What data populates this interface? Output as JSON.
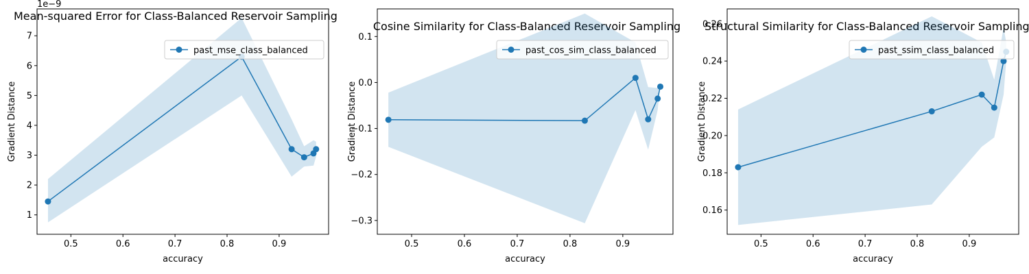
{
  "chart_data": [
    {
      "type": "line",
      "title": "Mean-squared Error for Class-Balanced Reservoir Sampling",
      "xlabel": "accuracy",
      "ylabel": "Gradient Distance",
      "y_multiplier_label": "1e−9",
      "xlim": [
        0.435,
        0.995
      ],
      "ylim": [
        0.35,
        7.9
      ],
      "xticks": [
        0.5,
        0.6,
        0.7,
        0.8,
        0.9
      ],
      "yticks": [
        1,
        2,
        3,
        4,
        5,
        6,
        7
      ],
      "xtick_labels": [
        "0.5",
        "0.6",
        "0.7",
        "0.8",
        "0.9"
      ],
      "ytick_labels": [
        "1",
        "2",
        "3",
        "4",
        "5",
        "6",
        "7"
      ],
      "legend_position": "top-right",
      "series": [
        {
          "name": "past_mse_class_balanced",
          "color": "#1f77b4",
          "x": [
            0.456,
            0.828,
            0.924,
            0.948,
            0.966,
            0.971
          ],
          "y": [
            1.45,
            6.3,
            3.2,
            2.93,
            3.06,
            3.2
          ],
          "band_upper": [
            2.2,
            7.6,
            4.2,
            3.3,
            3.5,
            3.45
          ],
          "band_lower": [
            0.75,
            5.0,
            2.28,
            2.62,
            2.65,
            2.95
          ]
        }
      ]
    },
    {
      "type": "line",
      "title": "Cosine Similarity for Class-Balanced Reservoir Sampling",
      "xlabel": "accuracy",
      "ylabel": "Gradient Distance",
      "xlim": [
        0.435,
        0.995
      ],
      "ylim": [
        -0.33,
        0.16
      ],
      "xticks": [
        0.5,
        0.6,
        0.7,
        0.8,
        0.9
      ],
      "yticks": [
        -0.3,
        -0.2,
        -0.1,
        0.0,
        0.1
      ],
      "xtick_labels": [
        "0.5",
        "0.6",
        "0.7",
        "0.8",
        "0.9"
      ],
      "ytick_labels": [
        "−0.3",
        "−0.2",
        "−0.1",
        "0.0",
        "0.1"
      ],
      "legend_position": "top-right",
      "series": [
        {
          "name": "past_cos_sim_class_balanced",
          "color": "#1f77b4",
          "x": [
            0.456,
            0.828,
            0.924,
            0.948,
            0.966,
            0.971
          ],
          "y": [
            -0.081,
            -0.083,
            0.01,
            -0.08,
            -0.035,
            -0.009
          ],
          "band_upper": [
            -0.022,
            0.15,
            0.087,
            -0.01,
            -0.012,
            -0.012
          ],
          "band_lower": [
            -0.14,
            -0.306,
            -0.06,
            -0.146,
            -0.06,
            -0.005
          ]
        }
      ]
    },
    {
      "type": "line",
      "title": "Structural Similarity for Class-Balanced Reservoir Sampling",
      "xlabel": "accuracy",
      "ylabel": "Gradient Distance",
      "xlim": [
        0.435,
        0.995
      ],
      "ylim": [
        0.147,
        0.268
      ],
      "xticks": [
        0.5,
        0.6,
        0.7,
        0.8,
        0.9
      ],
      "yticks": [
        0.16,
        0.18,
        0.2,
        0.22,
        0.24,
        0.26
      ],
      "xtick_labels": [
        "0.5",
        "0.6",
        "0.7",
        "0.8",
        "0.9"
      ],
      "ytick_labels": [
        "0.16",
        "0.18",
        "0.20",
        "0.22",
        "0.24",
        "0.26"
      ],
      "legend_position": "top-right",
      "series": [
        {
          "name": "past_ssim_class_balanced",
          "color": "#1f77b4",
          "x": [
            0.456,
            0.828,
            0.924,
            0.948,
            0.966,
            0.971
          ],
          "y": [
            0.183,
            0.213,
            0.222,
            0.215,
            0.24,
            0.245
          ],
          "band_upper": [
            0.214,
            0.264,
            0.25,
            0.23,
            0.258,
            0.25
          ],
          "band_lower": [
            0.152,
            0.163,
            0.194,
            0.199,
            0.222,
            0.24
          ]
        }
      ]
    }
  ]
}
